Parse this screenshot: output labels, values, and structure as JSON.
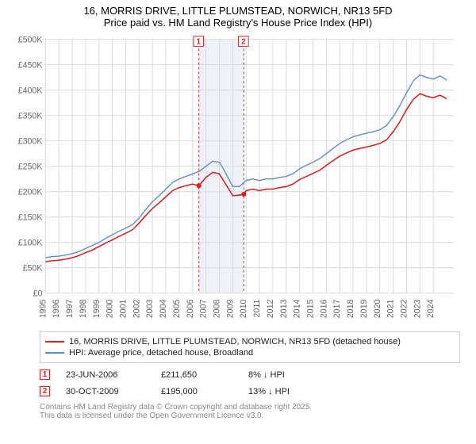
{
  "title": {
    "line1": "16, MORRIS DRIVE, LITTLE PLUMSTEAD, NORWICH, NR13 5FD",
    "line2": "Price paid vs. HM Land Registry's House Price Index (HPI)"
  },
  "chart": {
    "type": "line",
    "x_min": 1995,
    "x_max": 2025.5,
    "x_ticks": [
      1995,
      1996,
      1997,
      1998,
      1999,
      2000,
      2001,
      2002,
      2003,
      2004,
      2005,
      2006,
      2007,
      2008,
      2009,
      2010,
      2011,
      2012,
      2013,
      2014,
      2015,
      2016,
      2017,
      2018,
      2019,
      2020,
      2021,
      2022,
      2023,
      2024
    ],
    "y_min": 0,
    "y_max": 500000,
    "y_tick_step": 50000,
    "y_tick_labels": [
      "£0",
      "£50K",
      "£100K",
      "£150K",
      "£200K",
      "£250K",
      "£300K",
      "£350K",
      "£400K",
      "£450K",
      "£500K"
    ],
    "background_color": "#ffffff",
    "grid_color": "#d9d9d9",
    "sale_band_color": "#eef2f8",
    "sale_line_color": "#e02020",
    "sale_line_dash": "3,3",
    "series": [
      {
        "name": "hpi",
        "color": "#5b8cc8",
        "width": 1.4,
        "label": "HPI: Average price, detached house, Broadland",
        "points": [
          [
            1995.0,
            70000
          ],
          [
            1995.5,
            72000
          ],
          [
            1996.0,
            73000
          ],
          [
            1996.5,
            75000
          ],
          [
            1997.0,
            78000
          ],
          [
            1997.5,
            82000
          ],
          [
            1998.0,
            88000
          ],
          [
            1998.5,
            94000
          ],
          [
            1999.0,
            100000
          ],
          [
            1999.5,
            108000
          ],
          [
            2000.0,
            115000
          ],
          [
            2000.5,
            122000
          ],
          [
            2001.0,
            128000
          ],
          [
            2001.5,
            135000
          ],
          [
            2002.0,
            148000
          ],
          [
            2002.5,
            165000
          ],
          [
            2003.0,
            180000
          ],
          [
            2003.5,
            192000
          ],
          [
            2004.0,
            205000
          ],
          [
            2004.5,
            218000
          ],
          [
            2005.0,
            225000
          ],
          [
            2005.5,
            230000
          ],
          [
            2006.0,
            235000
          ],
          [
            2006.5,
            240000
          ],
          [
            2007.0,
            250000
          ],
          [
            2007.5,
            260000
          ],
          [
            2008.0,
            258000
          ],
          [
            2008.3,
            245000
          ],
          [
            2008.7,
            225000
          ],
          [
            2009.0,
            210000
          ],
          [
            2009.5,
            210000
          ],
          [
            2010.0,
            222000
          ],
          [
            2010.5,
            225000
          ],
          [
            2011.0,
            222000
          ],
          [
            2011.5,
            225000
          ],
          [
            2012.0,
            225000
          ],
          [
            2012.5,
            228000
          ],
          [
            2013.0,
            230000
          ],
          [
            2013.5,
            235000
          ],
          [
            2014.0,
            245000
          ],
          [
            2014.5,
            252000
          ],
          [
            2015.0,
            258000
          ],
          [
            2015.5,
            265000
          ],
          [
            2016.0,
            275000
          ],
          [
            2016.5,
            285000
          ],
          [
            2017.0,
            295000
          ],
          [
            2017.5,
            302000
          ],
          [
            2018.0,
            308000
          ],
          [
            2018.5,
            312000
          ],
          [
            2019.0,
            315000
          ],
          [
            2019.5,
            318000
          ],
          [
            2020.0,
            322000
          ],
          [
            2020.5,
            330000
          ],
          [
            2021.0,
            348000
          ],
          [
            2021.5,
            370000
          ],
          [
            2022.0,
            395000
          ],
          [
            2022.5,
            418000
          ],
          [
            2023.0,
            430000
          ],
          [
            2023.5,
            425000
          ],
          [
            2024.0,
            422000
          ],
          [
            2024.5,
            428000
          ],
          [
            2025.0,
            420000
          ]
        ]
      },
      {
        "name": "price_paid",
        "color": "#d82020",
        "width": 1.6,
        "label": "16, MORRIS DRIVE, LITTLE PLUMSTEAD, NORWICH, NR13 5FD (detached house)",
        "points": [
          [
            1995.0,
            62000
          ],
          [
            1995.5,
            64000
          ],
          [
            1996.0,
            65000
          ],
          [
            1996.5,
            67000
          ],
          [
            1997.0,
            70000
          ],
          [
            1997.5,
            74000
          ],
          [
            1998.0,
            80000
          ],
          [
            1998.5,
            85000
          ],
          [
            1999.0,
            92000
          ],
          [
            1999.5,
            99000
          ],
          [
            2000.0,
            105000
          ],
          [
            2000.5,
            112000
          ],
          [
            2001.0,
            118000
          ],
          [
            2001.5,
            125000
          ],
          [
            2002.0,
            138000
          ],
          [
            2002.5,
            153000
          ],
          [
            2003.0,
            167000
          ],
          [
            2003.5,
            178000
          ],
          [
            2004.0,
            190000
          ],
          [
            2004.5,
            202000
          ],
          [
            2005.0,
            208000
          ],
          [
            2005.5,
            212000
          ],
          [
            2006.0,
            215000
          ],
          [
            2006.47,
            211650
          ],
          [
            2007.0,
            228000
          ],
          [
            2007.5,
            238000
          ],
          [
            2008.0,
            235000
          ],
          [
            2008.3,
            222000
          ],
          [
            2008.7,
            205000
          ],
          [
            2009.0,
            192000
          ],
          [
            2009.5,
            193000
          ],
          [
            2009.83,
            195000
          ],
          [
            2010.0,
            202000
          ],
          [
            2010.5,
            205000
          ],
          [
            2011.0,
            202000
          ],
          [
            2011.5,
            205000
          ],
          [
            2012.0,
            205000
          ],
          [
            2012.5,
            208000
          ],
          [
            2013.0,
            210000
          ],
          [
            2013.5,
            215000
          ],
          [
            2014.0,
            224000
          ],
          [
            2014.5,
            230000
          ],
          [
            2015.0,
            236000
          ],
          [
            2015.5,
            242000
          ],
          [
            2016.0,
            252000
          ],
          [
            2016.5,
            261000
          ],
          [
            2017.0,
            270000
          ],
          [
            2017.5,
            276000
          ],
          [
            2018.0,
            282000
          ],
          [
            2018.5,
            285000
          ],
          [
            2019.0,
            288000
          ],
          [
            2019.5,
            291000
          ],
          [
            2020.0,
            295000
          ],
          [
            2020.5,
            302000
          ],
          [
            2021.0,
            318000
          ],
          [
            2021.5,
            338000
          ],
          [
            2022.0,
            362000
          ],
          [
            2022.5,
            382000
          ],
          [
            2023.0,
            393000
          ],
          [
            2023.5,
            388000
          ],
          [
            2024.0,
            385000
          ],
          [
            2024.5,
            390000
          ],
          [
            2025.0,
            383000
          ]
        ]
      }
    ],
    "sale_markers": [
      {
        "index": "1",
        "x": 2006.47,
        "y": 211650
      },
      {
        "index": "2",
        "x": 2009.83,
        "y": 195000
      }
    ],
    "sale_top_flags": [
      {
        "index": "1",
        "x": 2006.47
      },
      {
        "index": "2",
        "x": 2009.83
      }
    ],
    "shaded_band": {
      "x_start": 2006.47,
      "x_end": 2009.83
    }
  },
  "legend": {
    "rows": [
      {
        "swatch_color": "#d82020",
        "swatch_width": 2,
        "text": "16, MORRIS DRIVE, LITTLE PLUMSTEAD, NORWICH, NR13 5FD (detached house)"
      },
      {
        "swatch_color": "#5b8cc8",
        "swatch_width": 2,
        "text": "HPI: Average price, detached house, Broadland"
      }
    ]
  },
  "sales": [
    {
      "index": "1",
      "date": "23-JUN-2006",
      "price": "£211,650",
      "vs_hpi": "8% ↓ HPI"
    },
    {
      "index": "2",
      "date": "30-OCT-2009",
      "price": "£195,000",
      "vs_hpi": "13% ↓ HPI"
    }
  ],
  "attribution": {
    "line1": "Contains HM Land Registry data © Crown copyright and database right 2025.",
    "line2": "This data is licensed under the Open Government Licence v3.0."
  },
  "axis_font_size": 11,
  "axis_color": "#666666"
}
